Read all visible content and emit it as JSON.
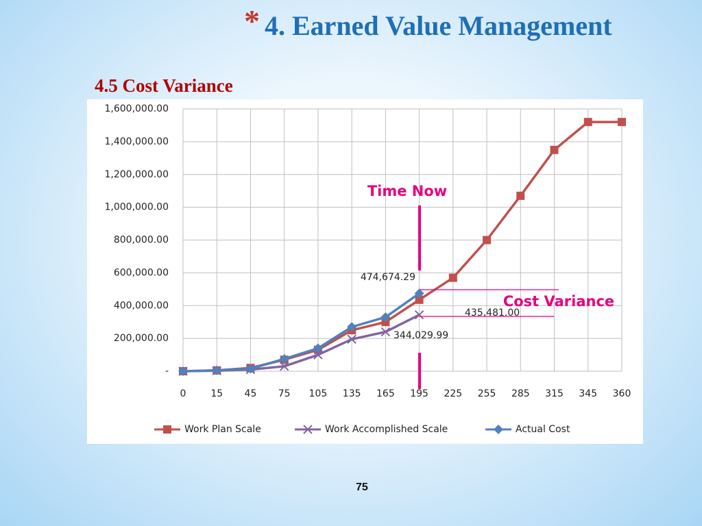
{
  "slide": {
    "bullet": "*",
    "title": "4. Earned Value Management",
    "subtitle": "4.5 Cost Variance",
    "page_number": "75"
  },
  "chart_data": {
    "type": "line",
    "categories": [
      "0",
      "15",
      "45",
      "75",
      "105",
      "135",
      "165",
      "195",
      "225",
      "255",
      "285",
      "315",
      "345",
      "360"
    ],
    "ylim": [
      0,
      1600000
    ],
    "yticks": [
      {
        "value": 0,
        "label": "-"
      },
      {
        "value": 200000,
        "label": "200,000.00"
      },
      {
        "value": 400000,
        "label": "400,000.00"
      },
      {
        "value": 600000,
        "label": "600,000.00"
      },
      {
        "value": 800000,
        "label": "800,000.00"
      },
      {
        "value": 1000000,
        "label": "1,000,000.00"
      },
      {
        "value": 1200000,
        "label": "1,200,000.00"
      },
      {
        "value": 1400000,
        "label": "1,400,000.00"
      },
      {
        "value": 1600000,
        "label": "1,600,000.00"
      }
    ],
    "grid": true,
    "legend": "bottom",
    "series": [
      {
        "name": "Work Plan Scale",
        "color": "#c0504d",
        "marker": "square",
        "values": [
          0,
          5000,
          20000,
          70000,
          130000,
          250000,
          300000,
          435481,
          570000,
          800000,
          1070000,
          1350000,
          1520000,
          1520000
        ],
        "value_labels": [
          null,
          null,
          null,
          null,
          null,
          null,
          null,
          "435,481.00",
          null,
          null,
          null,
          null,
          null,
          null
        ]
      },
      {
        "name": "Work Accomplished Scale",
        "color": "#8064a2",
        "marker": "x",
        "values": [
          0,
          3000,
          10000,
          30000,
          100000,
          195000,
          240000,
          344029.99,
          null,
          null,
          null,
          null,
          null,
          null
        ],
        "value_labels": [
          null,
          null,
          null,
          null,
          null,
          null,
          null,
          "344,029.99",
          null,
          null,
          null,
          null,
          null,
          null
        ]
      },
      {
        "name": "Actual Cost",
        "color": "#4f81bd",
        "marker": "diamond",
        "values": [
          0,
          5000,
          15000,
          75000,
          140000,
          270000,
          330000,
          474674.29,
          null,
          null,
          null,
          null,
          null,
          null
        ],
        "value_labels": [
          null,
          null,
          null,
          null,
          null,
          null,
          null,
          "474,674.29",
          null,
          null,
          null,
          null,
          null,
          null
        ]
      }
    ],
    "annotations": [
      "Time Now",
      "Cost Variance"
    ],
    "annotation_color": "#e6007e"
  }
}
